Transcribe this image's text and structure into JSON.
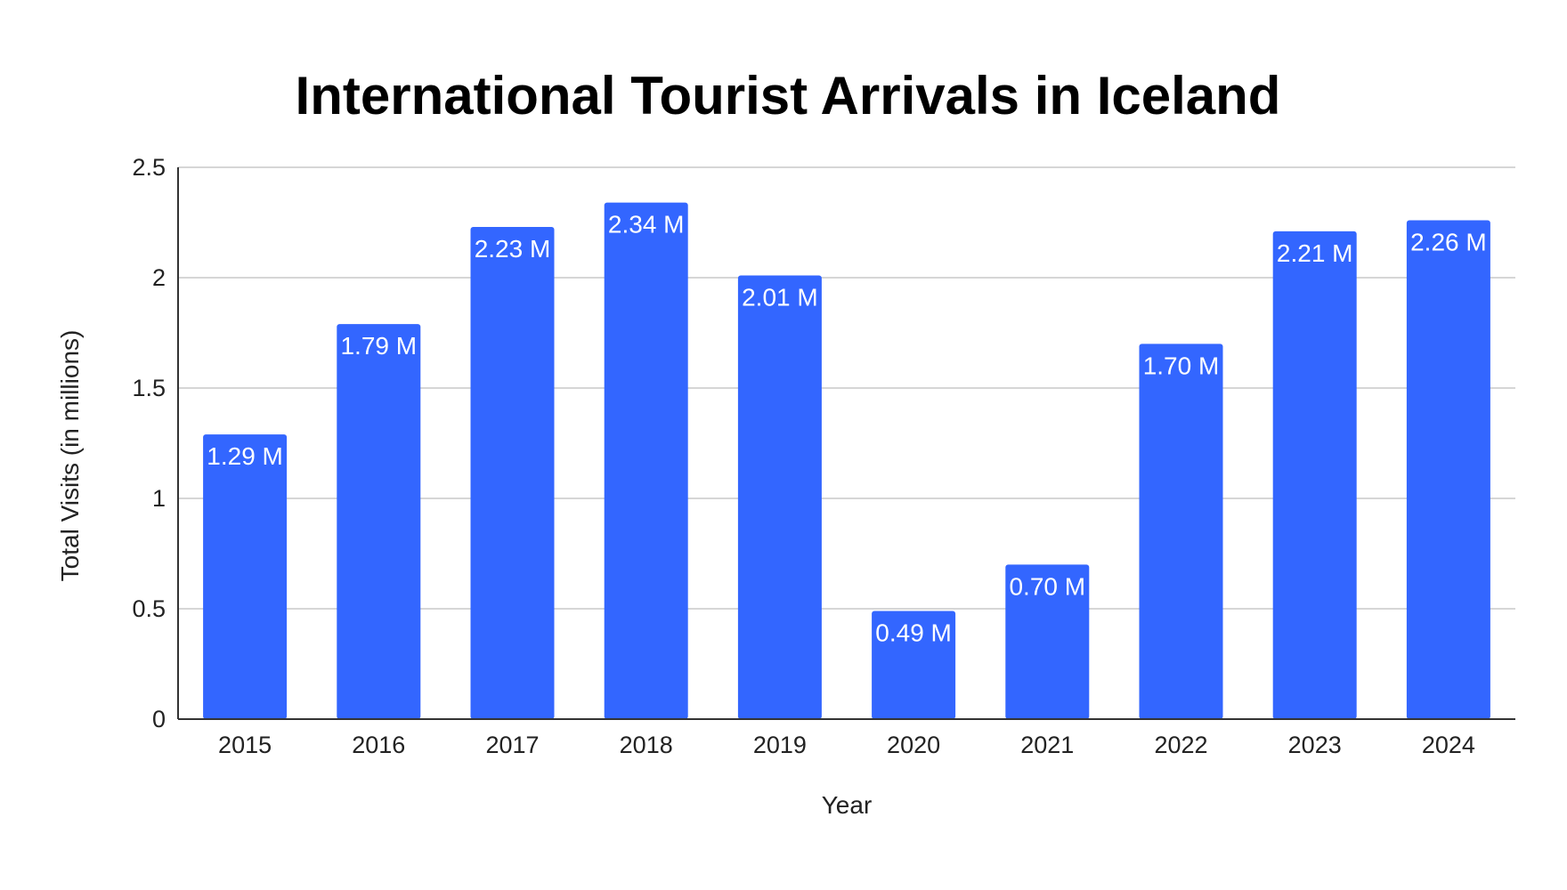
{
  "chart_data": {
    "type": "bar",
    "title": "International Tourist Arrivals in Iceland",
    "xlabel": "Year",
    "ylabel": "Total Visits (in millions)",
    "categories": [
      "2015",
      "2016",
      "2017",
      "2018",
      "2019",
      "2020",
      "2021",
      "2022",
      "2023",
      "2024"
    ],
    "values": [
      1.29,
      1.79,
      2.23,
      2.34,
      2.01,
      0.49,
      0.7,
      1.7,
      2.21,
      2.26
    ],
    "data_labels": [
      "1.29 M",
      "1.79 M",
      "2.23 M",
      "2.34 M",
      "2.01 M",
      "0.49 M",
      "0.70 M",
      "1.70 M",
      "2.21 M",
      "2.26 M"
    ],
    "ylim": [
      0,
      2.5
    ],
    "yticks": [
      0,
      0.5,
      1,
      1.5,
      2,
      2.5
    ],
    "ytick_labels": [
      "0",
      "0.5",
      "1",
      "1.5",
      "2",
      "2.5"
    ],
    "grid": true,
    "legend": "none",
    "bar_color": "#3366FF"
  }
}
